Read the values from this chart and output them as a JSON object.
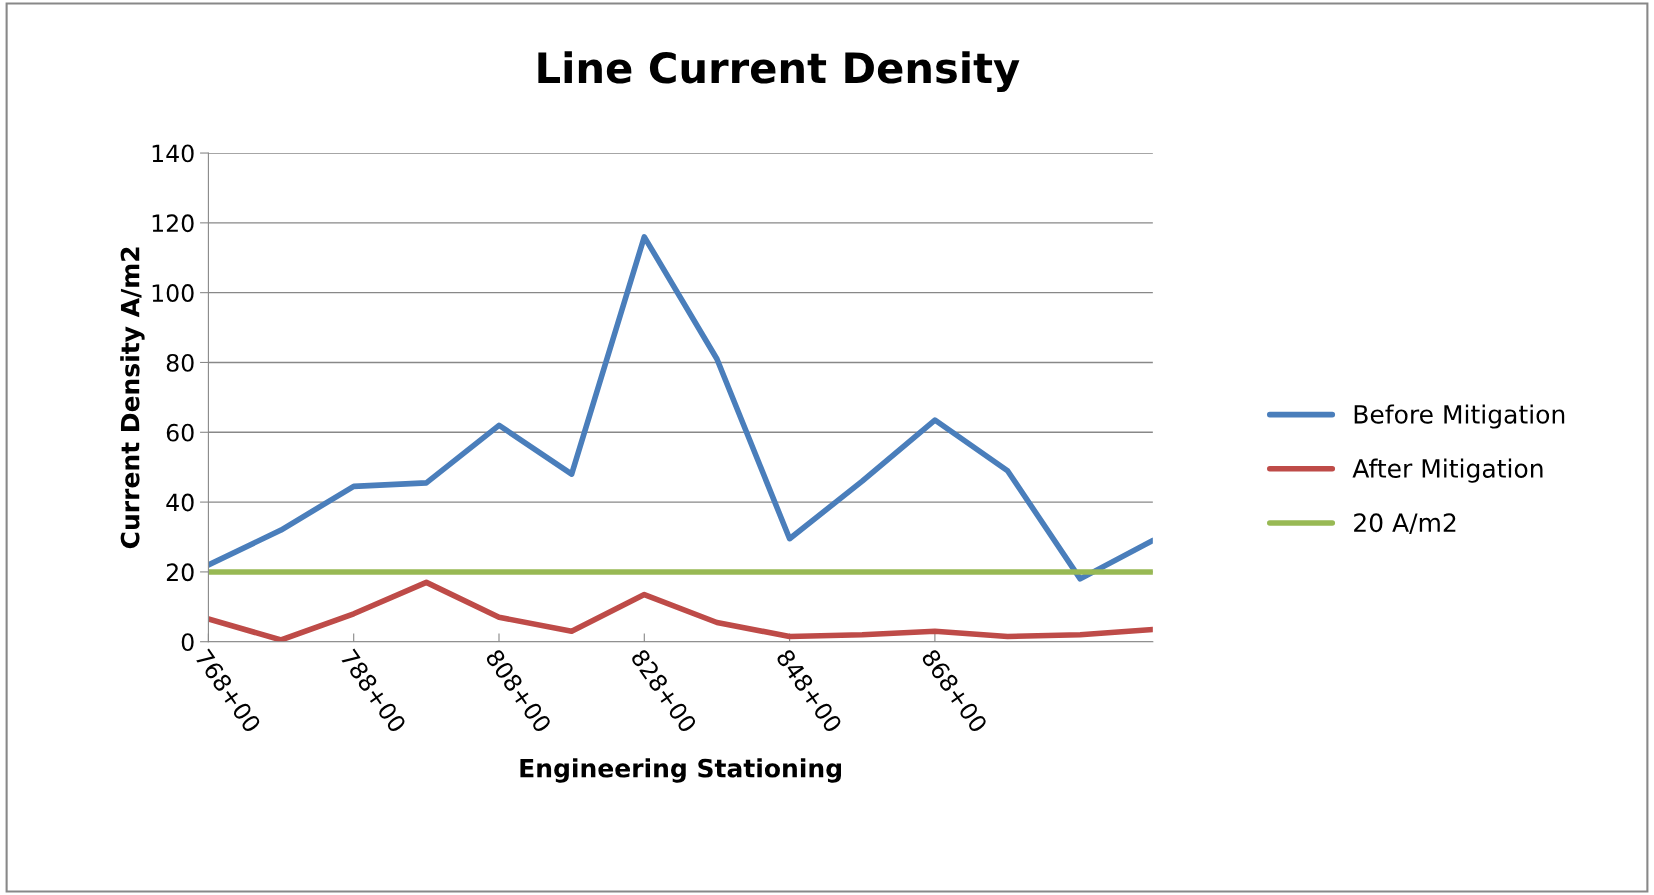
{
  "chart_data": {
    "type": "line",
    "title": "Line Current Density",
    "xlabel": "Engineering Stationing",
    "ylabel": "Current Density A/m2",
    "categories": [
      "768+00",
      null,
      "788+00",
      null,
      "808+00",
      null,
      "828+00",
      null,
      "848+00",
      null,
      "868+00",
      null,
      null,
      null
    ],
    "series": [
      {
        "name": "Before Mitigation",
        "color": "#4a7ebb",
        "values": [
          22,
          32,
          44.5,
          45.5,
          62,
          48,
          116,
          81,
          29.5,
          46,
          63.5,
          49,
          18,
          29
        ]
      },
      {
        "name": "After Mitigation",
        "color": "#be4b48",
        "values": [
          6.5,
          0.5,
          8,
          17,
          7,
          3,
          13.5,
          5.5,
          1.5,
          2,
          3,
          1.5,
          2,
          3.5
        ]
      },
      {
        "name": "20 A/m2",
        "color": "#98b954",
        "values": [
          20,
          20,
          20,
          20,
          20,
          20,
          20,
          20,
          20,
          20,
          20,
          20,
          20,
          20
        ]
      }
    ],
    "ylim": [
      0,
      140
    ],
    "yticks": [
      0,
      20,
      40,
      60,
      80,
      100,
      120,
      140
    ],
    "grid": "y",
    "legend": "right",
    "marker": "none",
    "line_style": "solid"
  }
}
